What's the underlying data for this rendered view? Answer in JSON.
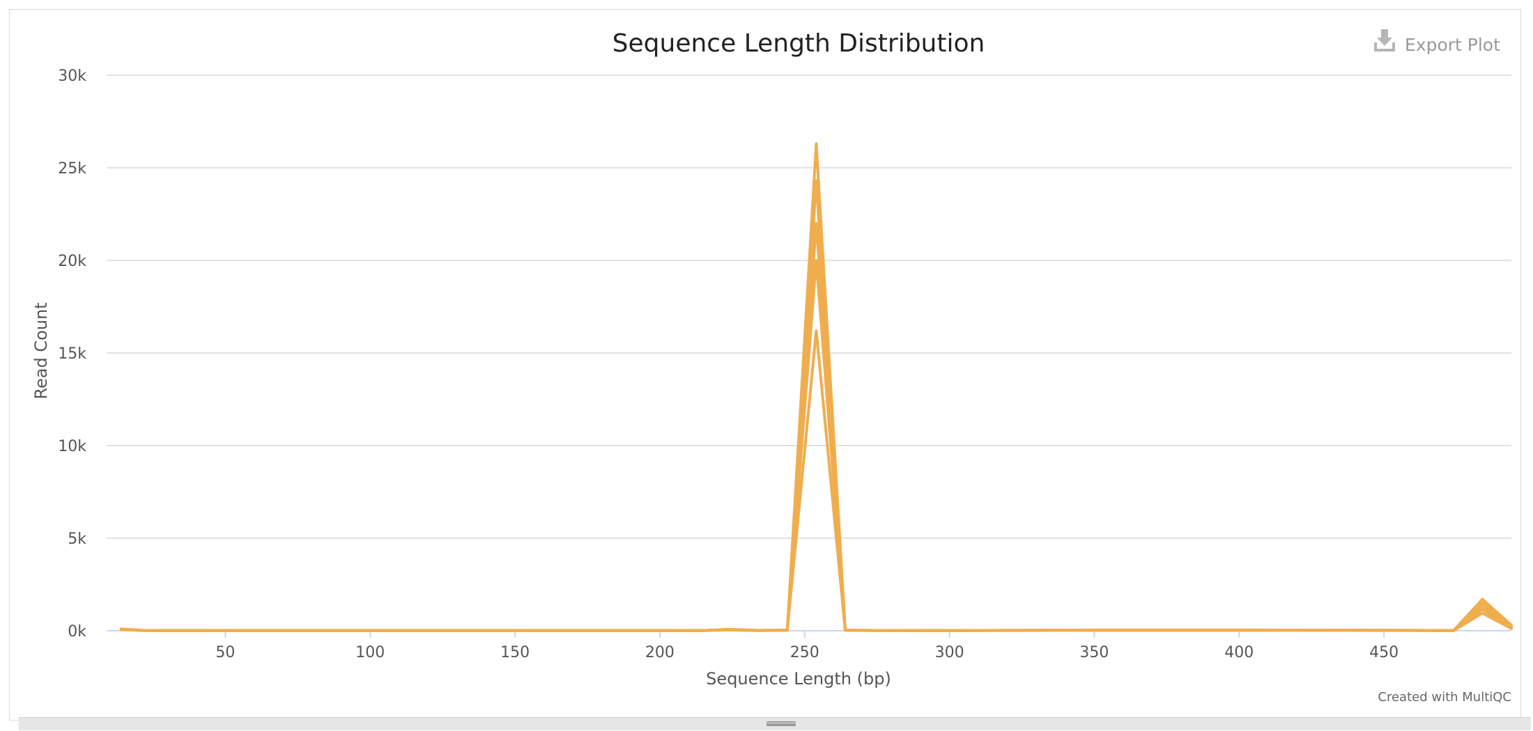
{
  "chart_data": {
    "type": "line",
    "title": "Sequence Length Distribution",
    "xlabel": "Sequence Length (bp)",
    "ylabel": "Read Count",
    "xlim": [
      9,
      494
    ],
    "ylim": [
      0,
      30000
    ],
    "x_ticks": [
      50,
      100,
      150,
      200,
      250,
      300,
      350,
      400,
      450
    ],
    "y_ticks": [
      0,
      5000,
      10000,
      15000,
      20000,
      25000,
      30000
    ],
    "y_tick_labels": [
      "0k",
      "5k",
      "10k",
      "15k",
      "20k",
      "25k",
      "30k"
    ],
    "grid": true,
    "legend": "none",
    "color": "#f0ad4e",
    "series": [
      {
        "x": [
          14,
          22,
          50,
          100,
          150,
          200,
          215,
          224,
          234,
          244,
          254,
          264,
          274,
          300,
          330,
          350,
          400,
          450,
          474,
          484,
          494
        ],
        "y": [
          100,
          20,
          10,
          10,
          10,
          10,
          15,
          80,
          20,
          40,
          26300,
          40,
          20,
          10,
          30,
          40,
          40,
          30,
          10,
          1700,
          300
        ]
      },
      {
        "x": [
          14,
          22,
          50,
          100,
          150,
          200,
          215,
          224,
          234,
          244,
          254,
          264,
          274,
          300,
          330,
          350,
          400,
          450,
          474,
          484,
          494
        ],
        "y": [
          90,
          15,
          10,
          10,
          10,
          10,
          12,
          70,
          18,
          35,
          24300,
          35,
          18,
          10,
          28,
          35,
          35,
          28,
          10,
          1500,
          250
        ]
      },
      {
        "x": [
          14,
          22,
          50,
          100,
          150,
          200,
          215,
          224,
          234,
          244,
          254,
          264,
          274,
          300,
          330,
          350,
          400,
          450,
          474,
          484,
          494
        ],
        "y": [
          80,
          12,
          10,
          10,
          10,
          10,
          10,
          60,
          15,
          30,
          22000,
          30,
          15,
          10,
          25,
          30,
          30,
          25,
          10,
          1300,
          200
        ]
      },
      {
        "x": [
          14,
          22,
          50,
          100,
          150,
          200,
          215,
          224,
          234,
          244,
          254,
          264,
          274,
          300,
          330,
          350,
          400,
          450,
          474,
          484,
          494
        ],
        "y": [
          70,
          10,
          8,
          8,
          8,
          8,
          8,
          50,
          12,
          25,
          20000,
          25,
          12,
          8,
          20,
          25,
          25,
          20,
          8,
          1150,
          150
        ]
      },
      {
        "x": [
          14,
          22,
          50,
          100,
          150,
          200,
          215,
          224,
          234,
          244,
          254,
          264,
          274,
          300,
          330,
          350,
          400,
          450,
          474,
          484,
          494
        ],
        "y": [
          60,
          8,
          6,
          6,
          6,
          6,
          6,
          40,
          10,
          20,
          16200,
          20,
          10,
          6,
          15,
          20,
          20,
          15,
          6,
          950,
          120
        ]
      }
    ]
  },
  "export_button": {
    "label": "Export Plot",
    "icon": "download-icon"
  },
  "credits": "Created with MultiQC"
}
